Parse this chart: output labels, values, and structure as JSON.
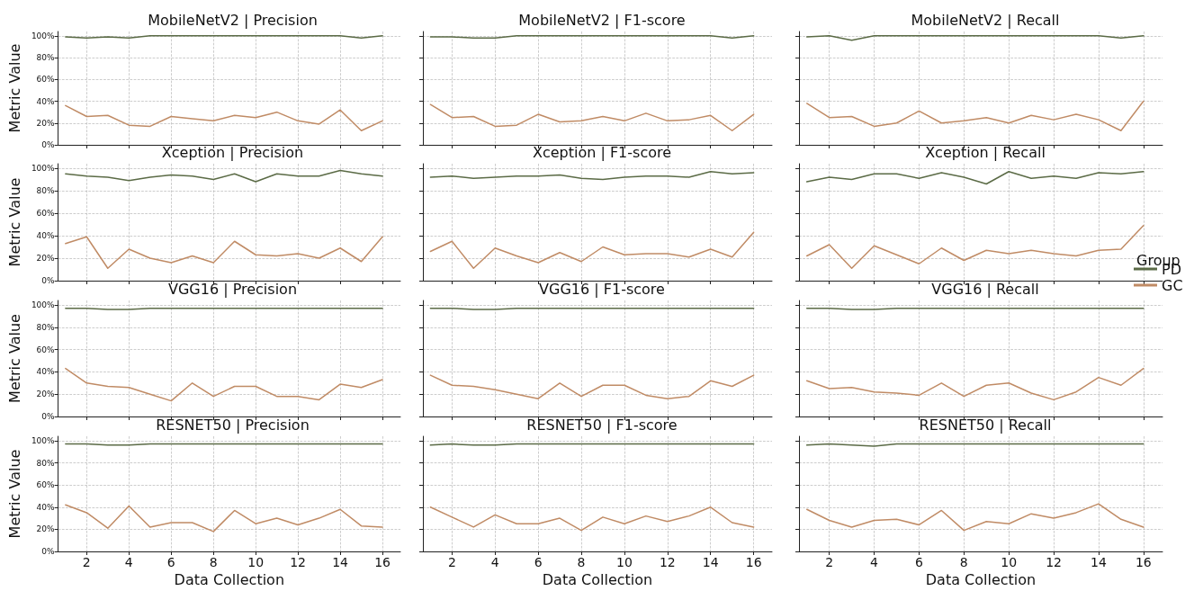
{
  "chart_data": [
    {
      "type": "line",
      "title": "MobileNetV2 | Precision",
      "ylabel": "Metric Value",
      "x": [
        1,
        2,
        3,
        4,
        5,
        6,
        7,
        8,
        9,
        10,
        11,
        12,
        13,
        14,
        15,
        16
      ],
      "xlim": [
        0.65,
        16.85
      ],
      "xticks": [
        {
          "value": 2,
          "label": null
        },
        {
          "value": 4,
          "label": null
        },
        {
          "value": 6,
          "label": null
        },
        {
          "value": 8,
          "label": null
        },
        {
          "value": 10,
          "label": null
        },
        {
          "value": 12,
          "label": null
        },
        {
          "value": 14,
          "label": null
        },
        {
          "value": 16,
          "label": null
        }
      ],
      "ylim": [
        0,
        1.04
      ],
      "yticks": [
        {
          "value": 0,
          "label": "0%"
        },
        {
          "value": 0.2,
          "label": "20%"
        },
        {
          "value": 0.4,
          "label": "40%"
        },
        {
          "value": 0.6,
          "label": "60%"
        },
        {
          "value": 0.8,
          "label": "80%"
        },
        {
          "value": 1,
          "label": "100%"
        }
      ],
      "grid": true,
      "tick_labels": "y",
      "series": [
        {
          "color": "#5b6b46",
          "values": [
            0.99,
            0.98,
            0.99,
            0.98,
            1,
            1,
            1,
            1,
            1,
            1,
            1,
            1,
            1,
            1,
            0.98,
            1
          ]
        },
        {
          "color": "#c08b65",
          "values": [
            0.36,
            0.26,
            0.27,
            0.18,
            0.17,
            0.26,
            0.24,
            0.22,
            0.27,
            0.25,
            0.3,
            0.22,
            0.19,
            0.32,
            0.13,
            0.22
          ]
        }
      ]
    },
    {
      "type": "line",
      "title": "MobileNetV2 | F1-score",
      "x": [
        1,
        2,
        3,
        4,
        5,
        6,
        7,
        8,
        9,
        10,
        11,
        12,
        13,
        14,
        15,
        16
      ],
      "xlim": [
        0.65,
        16.85
      ],
      "xticks": [
        {
          "value": 2,
          "label": null
        },
        {
          "value": 4,
          "label": null
        },
        {
          "value": 6,
          "label": null
        },
        {
          "value": 8,
          "label": null
        },
        {
          "value": 10,
          "label": null
        },
        {
          "value": 12,
          "label": null
        },
        {
          "value": 14,
          "label": null
        },
        {
          "value": 16,
          "label": null
        }
      ],
      "ylim": [
        0,
        1.04
      ],
      "yticks": [
        {
          "value": 0,
          "label": null
        },
        {
          "value": 0.2,
          "label": null
        },
        {
          "value": 0.4,
          "label": null
        },
        {
          "value": 0.6,
          "label": null
        },
        {
          "value": 0.8,
          "label": null
        },
        {
          "value": 1,
          "label": null
        }
      ],
      "grid": true,
      "tick_labels": false,
      "series": [
        {
          "color": "#5b6b46",
          "values": [
            0.99,
            0.99,
            0.98,
            0.98,
            1,
            1,
            1,
            1,
            1,
            1,
            1,
            1,
            1,
            1,
            0.98,
            1
          ]
        },
        {
          "color": "#c08b65",
          "values": [
            0.37,
            0.25,
            0.26,
            0.17,
            0.18,
            0.28,
            0.21,
            0.22,
            0.26,
            0.22,
            0.29,
            0.22,
            0.23,
            0.27,
            0.13,
            0.28
          ]
        }
      ]
    },
    {
      "type": "line",
      "title": "MobileNetV2 | Recall",
      "x": [
        1,
        2,
        3,
        4,
        5,
        6,
        7,
        8,
        9,
        10,
        11,
        12,
        13,
        14,
        15,
        16
      ],
      "xlim": [
        0.65,
        16.85
      ],
      "xticks": [
        {
          "value": 2,
          "label": null
        },
        {
          "value": 4,
          "label": null
        },
        {
          "value": 6,
          "label": null
        },
        {
          "value": 8,
          "label": null
        },
        {
          "value": 10,
          "label": null
        },
        {
          "value": 12,
          "label": null
        },
        {
          "value": 14,
          "label": null
        },
        {
          "value": 16,
          "label": null
        }
      ],
      "ylim": [
        0,
        1.04
      ],
      "yticks": [
        {
          "value": 0,
          "label": null
        },
        {
          "value": 0.2,
          "label": null
        },
        {
          "value": 0.4,
          "label": null
        },
        {
          "value": 0.6,
          "label": null
        },
        {
          "value": 0.8,
          "label": null
        },
        {
          "value": 1,
          "label": null
        }
      ],
      "grid": true,
      "tick_labels": false,
      "series": [
        {
          "color": "#5b6b46",
          "values": [
            0.99,
            1,
            0.96,
            1,
            1,
            1,
            1,
            1,
            1,
            1,
            1,
            1,
            1,
            1,
            0.98,
            1
          ]
        },
        {
          "color": "#c08b65",
          "values": [
            0.38,
            0.25,
            0.26,
            0.17,
            0.2,
            0.31,
            0.2,
            0.22,
            0.25,
            0.2,
            0.27,
            0.23,
            0.28,
            0.23,
            0.13,
            0.4
          ]
        }
      ]
    },
    {
      "type": "line",
      "title": "Xception | Precision",
      "ylabel": "Metric Value",
      "x": [
        1,
        2,
        3,
        4,
        5,
        6,
        7,
        8,
        9,
        10,
        11,
        12,
        13,
        14,
        15,
        16
      ],
      "xlim": [
        0.65,
        16.85
      ],
      "xticks": [
        {
          "value": 2,
          "label": null
        },
        {
          "value": 4,
          "label": null
        },
        {
          "value": 6,
          "label": null
        },
        {
          "value": 8,
          "label": null
        },
        {
          "value": 10,
          "label": null
        },
        {
          "value": 12,
          "label": null
        },
        {
          "value": 14,
          "label": null
        },
        {
          "value": 16,
          "label": null
        }
      ],
      "ylim": [
        0,
        1.04
      ],
      "yticks": [
        {
          "value": 0,
          "label": "0%"
        },
        {
          "value": 0.2,
          "label": "20%"
        },
        {
          "value": 0.4,
          "label": "40%"
        },
        {
          "value": 0.6,
          "label": "60%"
        },
        {
          "value": 0.8,
          "label": "80%"
        },
        {
          "value": 1,
          "label": "100%"
        }
      ],
      "grid": true,
      "tick_labels": "y",
      "series": [
        {
          "color": "#5b6b46",
          "values": [
            0.95,
            0.93,
            0.92,
            0.89,
            0.92,
            0.94,
            0.93,
            0.9,
            0.95,
            0.88,
            0.95,
            0.93,
            0.93,
            0.98,
            0.95,
            0.93
          ]
        },
        {
          "color": "#c08b65",
          "values": [
            0.33,
            0.39,
            0.11,
            0.28,
            0.2,
            0.16,
            0.22,
            0.16,
            0.35,
            0.23,
            0.22,
            0.24,
            0.2,
            0.29,
            0.17,
            0.39
          ]
        }
      ]
    },
    {
      "type": "line",
      "title": "Xception | F1-score",
      "x": [
        1,
        2,
        3,
        4,
        5,
        6,
        7,
        8,
        9,
        10,
        11,
        12,
        13,
        14,
        15,
        16
      ],
      "xlim": [
        0.65,
        16.85
      ],
      "xticks": [
        {
          "value": 2,
          "label": null
        },
        {
          "value": 4,
          "label": null
        },
        {
          "value": 6,
          "label": null
        },
        {
          "value": 8,
          "label": null
        },
        {
          "value": 10,
          "label": null
        },
        {
          "value": 12,
          "label": null
        },
        {
          "value": 14,
          "label": null
        },
        {
          "value": 16,
          "label": null
        }
      ],
      "ylim": [
        0,
        1.04
      ],
      "yticks": [
        {
          "value": 0,
          "label": null
        },
        {
          "value": 0.2,
          "label": null
        },
        {
          "value": 0.4,
          "label": null
        },
        {
          "value": 0.6,
          "label": null
        },
        {
          "value": 0.8,
          "label": null
        },
        {
          "value": 1,
          "label": null
        }
      ],
      "grid": true,
      "tick_labels": false,
      "series": [
        {
          "color": "#5b6b46",
          "values": [
            0.92,
            0.93,
            0.91,
            0.92,
            0.93,
            0.93,
            0.94,
            0.91,
            0.9,
            0.92,
            0.93,
            0.93,
            0.92,
            0.97,
            0.95,
            0.96
          ]
        },
        {
          "color": "#c08b65",
          "values": [
            0.26,
            0.35,
            0.11,
            0.29,
            0.22,
            0.16,
            0.25,
            0.17,
            0.3,
            0.23,
            0.24,
            0.24,
            0.21,
            0.28,
            0.21,
            0.43
          ]
        }
      ]
    },
    {
      "type": "line",
      "title": "Xception | Recall",
      "legend_title": "Group",
      "legend": "right",
      "x": [
        1,
        2,
        3,
        4,
        5,
        6,
        7,
        8,
        9,
        10,
        11,
        12,
        13,
        14,
        15,
        16
      ],
      "xlim": [
        0.65,
        16.85
      ],
      "xticks": [
        {
          "value": 2,
          "label": null
        },
        {
          "value": 4,
          "label": null
        },
        {
          "value": 6,
          "label": null
        },
        {
          "value": 8,
          "label": null
        },
        {
          "value": 10,
          "label": null
        },
        {
          "value": 12,
          "label": null
        },
        {
          "value": 14,
          "label": null
        },
        {
          "value": 16,
          "label": null
        }
      ],
      "ylim": [
        0,
        1.04
      ],
      "yticks": [
        {
          "value": 0,
          "label": null
        },
        {
          "value": 0.2,
          "label": null
        },
        {
          "value": 0.4,
          "label": null
        },
        {
          "value": 0.6,
          "label": null
        },
        {
          "value": 0.8,
          "label": null
        },
        {
          "value": 1,
          "label": null
        }
      ],
      "grid": true,
      "tick_labels": false,
      "series": [
        {
          "name": "PD",
          "color": "#5b6b46",
          "values": [
            0.88,
            0.92,
            0.9,
            0.95,
            0.95,
            0.91,
            0.96,
            0.92,
            0.86,
            0.97,
            0.91,
            0.93,
            0.91,
            0.96,
            0.95,
            0.97
          ]
        },
        {
          "name": "GC",
          "color": "#c08b65",
          "values": [
            0.22,
            0.32,
            0.11,
            0.31,
            0.23,
            0.15,
            0.29,
            0.18,
            0.27,
            0.24,
            0.27,
            0.24,
            0.22,
            0.27,
            0.28,
            0.49
          ]
        }
      ]
    },
    {
      "type": "line",
      "title": "VGG16 | Precision",
      "ylabel": "Metric Value",
      "x": [
        1,
        2,
        3,
        4,
        5,
        6,
        7,
        8,
        9,
        10,
        11,
        12,
        13,
        14,
        15,
        16
      ],
      "xlim": [
        0.65,
        16.85
      ],
      "xticks": [
        {
          "value": 2,
          "label": null
        },
        {
          "value": 4,
          "label": null
        },
        {
          "value": 6,
          "label": null
        },
        {
          "value": 8,
          "label": null
        },
        {
          "value": 10,
          "label": null
        },
        {
          "value": 12,
          "label": null
        },
        {
          "value": 14,
          "label": null
        },
        {
          "value": 16,
          "label": null
        }
      ],
      "ylim": [
        0,
        1.04
      ],
      "yticks": [
        {
          "value": 0,
          "label": "0%"
        },
        {
          "value": 0.2,
          "label": "20%"
        },
        {
          "value": 0.4,
          "label": "40%"
        },
        {
          "value": 0.6,
          "label": "60%"
        },
        {
          "value": 0.8,
          "label": "80%"
        },
        {
          "value": 1,
          "label": "100%"
        }
      ],
      "grid": true,
      "tick_labels": "y",
      "series": [
        {
          "color": "#5b6b46",
          "values": [
            0.97,
            0.97,
            0.96,
            0.96,
            0.97,
            0.97,
            0.97,
            0.97,
            0.97,
            0.97,
            0.97,
            0.97,
            0.97,
            0.97,
            0.97,
            0.97
          ]
        },
        {
          "color": "#c08b65",
          "values": [
            0.43,
            0.3,
            0.27,
            0.26,
            0.2,
            0.14,
            0.3,
            0.18,
            0.27,
            0.27,
            0.18,
            0.18,
            0.15,
            0.29,
            0.26,
            0.33
          ]
        }
      ]
    },
    {
      "type": "line",
      "title": "VGG16 | F1-score",
      "x": [
        1,
        2,
        3,
        4,
        5,
        6,
        7,
        8,
        9,
        10,
        11,
        12,
        13,
        14,
        15,
        16
      ],
      "xlim": [
        0.65,
        16.85
      ],
      "xticks": [
        {
          "value": 2,
          "label": null
        },
        {
          "value": 4,
          "label": null
        },
        {
          "value": 6,
          "label": null
        },
        {
          "value": 8,
          "label": null
        },
        {
          "value": 10,
          "label": null
        },
        {
          "value": 12,
          "label": null
        },
        {
          "value": 14,
          "label": null
        },
        {
          "value": 16,
          "label": null
        }
      ],
      "ylim": [
        0,
        1.04
      ],
      "yticks": [
        {
          "value": 0,
          "label": null
        },
        {
          "value": 0.2,
          "label": null
        },
        {
          "value": 0.4,
          "label": null
        },
        {
          "value": 0.6,
          "label": null
        },
        {
          "value": 0.8,
          "label": null
        },
        {
          "value": 1,
          "label": null
        }
      ],
      "grid": true,
      "tick_labels": false,
      "series": [
        {
          "color": "#5b6b46",
          "values": [
            0.97,
            0.97,
            0.96,
            0.96,
            0.97,
            0.97,
            0.97,
            0.97,
            0.97,
            0.97,
            0.97,
            0.97,
            0.97,
            0.97,
            0.97,
            0.97
          ]
        },
        {
          "color": "#c08b65",
          "values": [
            0.37,
            0.28,
            0.27,
            0.24,
            0.2,
            0.16,
            0.3,
            0.18,
            0.28,
            0.28,
            0.19,
            0.16,
            0.18,
            0.32,
            0.27,
            0.37
          ]
        }
      ]
    },
    {
      "type": "line",
      "title": "VGG16 | Recall",
      "x": [
        1,
        2,
        3,
        4,
        5,
        6,
        7,
        8,
        9,
        10,
        11,
        12,
        13,
        14,
        15,
        16
      ],
      "xlim": [
        0.65,
        16.85
      ],
      "xticks": [
        {
          "value": 2,
          "label": null
        },
        {
          "value": 4,
          "label": null
        },
        {
          "value": 6,
          "label": null
        },
        {
          "value": 8,
          "label": null
        },
        {
          "value": 10,
          "label": null
        },
        {
          "value": 12,
          "label": null
        },
        {
          "value": 14,
          "label": null
        },
        {
          "value": 16,
          "label": null
        }
      ],
      "ylim": [
        0,
        1.04
      ],
      "yticks": [
        {
          "value": 0,
          "label": null
        },
        {
          "value": 0.2,
          "label": null
        },
        {
          "value": 0.4,
          "label": null
        },
        {
          "value": 0.6,
          "label": null
        },
        {
          "value": 0.8,
          "label": null
        },
        {
          "value": 1,
          "label": null
        }
      ],
      "grid": true,
      "tick_labels": false,
      "series": [
        {
          "color": "#5b6b46",
          "values": [
            0.97,
            0.97,
            0.96,
            0.96,
            0.97,
            0.97,
            0.97,
            0.97,
            0.97,
            0.97,
            0.97,
            0.97,
            0.97,
            0.97,
            0.97,
            0.97
          ]
        },
        {
          "color": "#c08b65",
          "values": [
            0.32,
            0.25,
            0.26,
            0.22,
            0.21,
            0.19,
            0.3,
            0.18,
            0.28,
            0.3,
            0.21,
            0.15,
            0.22,
            0.35,
            0.28,
            0.43
          ]
        }
      ]
    },
    {
      "type": "line",
      "title": "RESNET50 | Precision",
      "xlabel": "Data Collection",
      "ylabel": "Metric Value",
      "x": [
        1,
        2,
        3,
        4,
        5,
        6,
        7,
        8,
        9,
        10,
        11,
        12,
        13,
        14,
        15,
        16
      ],
      "xlim": [
        0.65,
        16.85
      ],
      "xticks": [
        2,
        4,
        6,
        8,
        10,
        12,
        14,
        16
      ],
      "ylim": [
        0,
        1.04
      ],
      "yticks": [
        {
          "value": 0,
          "label": "0%"
        },
        {
          "value": 0.2,
          "label": "20%"
        },
        {
          "value": 0.4,
          "label": "40%"
        },
        {
          "value": 0.6,
          "label": "60%"
        },
        {
          "value": 0.8,
          "label": "80%"
        },
        {
          "value": 1,
          "label": "100%"
        }
      ],
      "grid": true,
      "series": [
        {
          "color": "#5b6b46",
          "values": [
            0.97,
            0.97,
            0.96,
            0.96,
            0.97,
            0.97,
            0.97,
            0.97,
            0.97,
            0.97,
            0.97,
            0.97,
            0.97,
            0.97,
            0.97,
            0.97
          ]
        },
        {
          "color": "#c08b65",
          "values": [
            0.42,
            0.35,
            0.21,
            0.41,
            0.22,
            0.26,
            0.26,
            0.18,
            0.37,
            0.25,
            0.3,
            0.24,
            0.3,
            0.38,
            0.23,
            0.22
          ]
        }
      ]
    },
    {
      "type": "line",
      "title": "RESNET50 | F1-score",
      "xlabel": "Data Collection",
      "x": [
        1,
        2,
        3,
        4,
        5,
        6,
        7,
        8,
        9,
        10,
        11,
        12,
        13,
        14,
        15,
        16
      ],
      "xlim": [
        0.65,
        16.85
      ],
      "xticks": [
        2,
        4,
        6,
        8,
        10,
        12,
        14,
        16
      ],
      "ylim": [
        0,
        1.04
      ],
      "yticks": [
        {
          "value": 0,
          "label": null
        },
        {
          "value": 0.2,
          "label": null
        },
        {
          "value": 0.4,
          "label": null
        },
        {
          "value": 0.6,
          "label": null
        },
        {
          "value": 0.8,
          "label": null
        },
        {
          "value": 1,
          "label": null
        }
      ],
      "grid": true,
      "tick_labels": "x",
      "series": [
        {
          "color": "#5b6b46",
          "values": [
            0.96,
            0.97,
            0.96,
            0.96,
            0.97,
            0.97,
            0.97,
            0.97,
            0.97,
            0.97,
            0.97,
            0.97,
            0.97,
            0.97,
            0.97,
            0.97
          ]
        },
        {
          "color": "#c08b65",
          "values": [
            0.4,
            0.31,
            0.22,
            0.33,
            0.25,
            0.25,
            0.3,
            0.19,
            0.31,
            0.25,
            0.32,
            0.27,
            0.32,
            0.4,
            0.26,
            0.22
          ]
        }
      ]
    },
    {
      "type": "line",
      "title": "RESNET50 | Recall",
      "xlabel": "Data Collection",
      "x": [
        1,
        2,
        3,
        4,
        5,
        6,
        7,
        8,
        9,
        10,
        11,
        12,
        13,
        14,
        15,
        16
      ],
      "xlim": [
        0.65,
        16.85
      ],
      "xticks": [
        2,
        4,
        6,
        8,
        10,
        12,
        14,
        16
      ],
      "ylim": [
        0,
        1.04
      ],
      "yticks": [
        {
          "value": 0,
          "label": null
        },
        {
          "value": 0.2,
          "label": null
        },
        {
          "value": 0.4,
          "label": null
        },
        {
          "value": 0.6,
          "label": null
        },
        {
          "value": 0.8,
          "label": null
        },
        {
          "value": 1,
          "label": null
        }
      ],
      "grid": true,
      "tick_labels": "x",
      "series": [
        {
          "color": "#5b6b46",
          "values": [
            0.96,
            0.97,
            0.96,
            0.95,
            0.97,
            0.97,
            0.97,
            0.97,
            0.97,
            0.97,
            0.97,
            0.97,
            0.97,
            0.97,
            0.97,
            0.97
          ]
        },
        {
          "color": "#c08b65",
          "values": [
            0.38,
            0.28,
            0.22,
            0.28,
            0.29,
            0.24,
            0.37,
            0.19,
            0.27,
            0.25,
            0.34,
            0.3,
            0.35,
            0.43,
            0.29,
            0.22
          ]
        }
      ]
    }
  ]
}
